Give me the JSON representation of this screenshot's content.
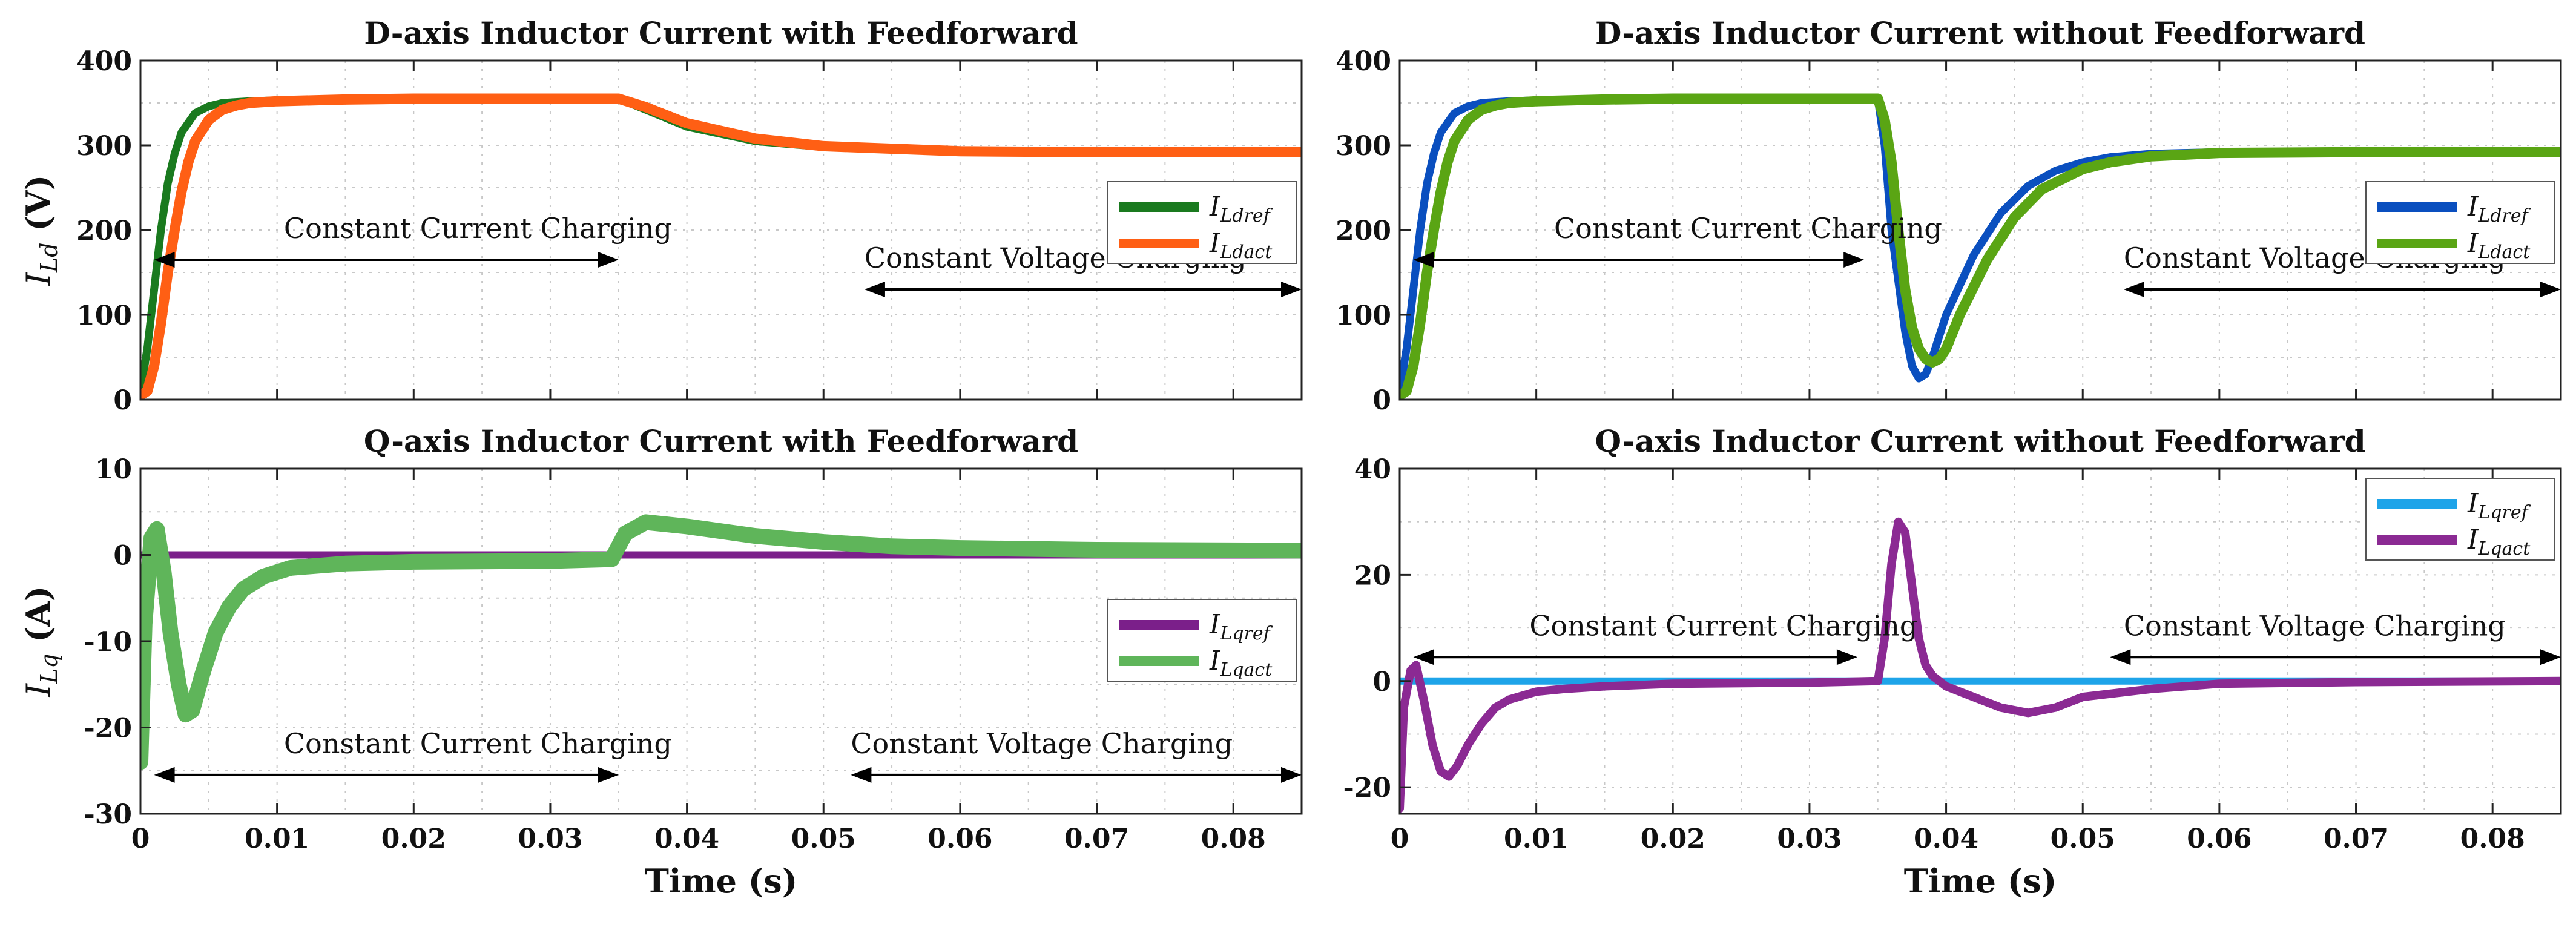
{
  "chart_data": [
    {
      "type": "line",
      "title": "D-axis Inductor Current with Feedforward",
      "ylabel_main": "I",
      "ylabel_sub": "Ld",
      "ylabel_unit": " (V)",
      "xlabel": "",
      "xlim": [
        0,
        0.085
      ],
      "ylim": [
        0,
        400
      ],
      "xticks": [
        0,
        0.01,
        0.02,
        0.03,
        0.04,
        0.05,
        0.06,
        0.07,
        0.08
      ],
      "xtick_labels": [
        "",
        "",
        "",
        "",
        "",
        "",
        "",
        "",
        ""
      ],
      "yticks": [
        0,
        100,
        200,
        300,
        400
      ],
      "ytick_labels": [
        "0",
        "100",
        "200",
        "300",
        "400"
      ],
      "legend_position": "right-middle",
      "annotations": [
        {
          "text": "Constant Current Charging",
          "x_from": 0.001,
          "x_to": 0.035,
          "y": 165
        },
        {
          "text": "Constant Voltage Charging",
          "x_from": 0.053,
          "x_to": 0.085,
          "y": 130
        }
      ],
      "series": [
        {
          "name": "I",
          "sub": "Ldref",
          "color": "#1a7a1f",
          "width": 13,
          "x": [
            0,
            0.0005,
            0.001,
            0.0015,
            0.002,
            0.0025,
            0.003,
            0.004,
            0.005,
            0.006,
            0.008,
            0.01,
            0.015,
            0.02,
            0.03,
            0.035,
            0.037,
            0.04,
            0.045,
            0.05,
            0.06,
            0.07,
            0.085
          ],
          "y": [
            10,
            60,
            130,
            200,
            255,
            290,
            315,
            338,
            346,
            350,
            352,
            353,
            354,
            355,
            355,
            355,
            342,
            322,
            305,
            298,
            293,
            292,
            292
          ]
        },
        {
          "name": "I",
          "sub": "Ldact",
          "color": "#ff5f14",
          "width": 17,
          "x": [
            0,
            0.0005,
            0.001,
            0.0015,
            0.002,
            0.0025,
            0.003,
            0.0035,
            0.004,
            0.005,
            0.006,
            0.007,
            0.008,
            0.01,
            0.015,
            0.02,
            0.03,
            0.035,
            0.037,
            0.04,
            0.045,
            0.05,
            0.06,
            0.07,
            0.085
          ],
          "y": [
            5,
            10,
            40,
            90,
            150,
            200,
            245,
            280,
            305,
            330,
            342,
            347,
            350,
            352,
            354,
            355,
            355,
            355,
            345,
            326,
            308,
            299,
            293,
            292,
            292
          ]
        }
      ]
    },
    {
      "type": "line",
      "title": "D-axis Inductor Current without Feedforward",
      "ylabel_main": "",
      "ylabel_sub": "",
      "ylabel_unit": "",
      "xlabel": "",
      "xlim": [
        0,
        0.085
      ],
      "ylim": [
        0,
        400
      ],
      "xticks": [
        0,
        0.01,
        0.02,
        0.03,
        0.04,
        0.05,
        0.06,
        0.07,
        0.08
      ],
      "xtick_labels": [
        "",
        "",
        "",
        "",
        "",
        "",
        "",
        "",
        ""
      ],
      "yticks": [
        0,
        100,
        200,
        300,
        400
      ],
      "ytick_labels": [
        "0",
        "100",
        "200",
        "300",
        "400"
      ],
      "legend_position": "right-middle",
      "annotations": [
        {
          "text": "Constant Current Charging",
          "x_from": 0.001,
          "x_to": 0.034,
          "y": 165
        },
        {
          "text": "Constant Voltage Charging",
          "x_from": 0.053,
          "x_to": 0.085,
          "y": 130
        }
      ],
      "series": [
        {
          "name": "I",
          "sub": "Ldref",
          "color": "#0a4fbf",
          "width": 13,
          "x": [
            0,
            0.0005,
            0.001,
            0.0015,
            0.002,
            0.0025,
            0.003,
            0.004,
            0.005,
            0.006,
            0.008,
            0.01,
            0.015,
            0.02,
            0.03,
            0.035,
            0.0355,
            0.036,
            0.037,
            0.0375,
            0.038,
            0.0385,
            0.039,
            0.04,
            0.042,
            0.044,
            0.046,
            0.048,
            0.05,
            0.052,
            0.055,
            0.06,
            0.07,
            0.085
          ],
          "y": [
            10,
            60,
            130,
            200,
            255,
            290,
            315,
            338,
            346,
            350,
            352,
            353,
            354,
            355,
            355,
            355,
            300,
            200,
            80,
            40,
            25,
            30,
            50,
            100,
            170,
            220,
            252,
            270,
            280,
            286,
            290,
            292,
            292,
            292
          ]
        },
        {
          "name": "I",
          "sub": "Ldact",
          "color": "#5aa514",
          "width": 17,
          "x": [
            0,
            0.0005,
            0.001,
            0.0015,
            0.002,
            0.0025,
            0.003,
            0.0035,
            0.004,
            0.005,
            0.006,
            0.007,
            0.008,
            0.01,
            0.015,
            0.02,
            0.03,
            0.035,
            0.0355,
            0.036,
            0.0365,
            0.037,
            0.0375,
            0.038,
            0.0385,
            0.039,
            0.0395,
            0.04,
            0.041,
            0.043,
            0.045,
            0.047,
            0.05,
            0.052,
            0.055,
            0.06,
            0.07,
            0.085
          ],
          "y": [
            5,
            10,
            40,
            90,
            150,
            200,
            245,
            280,
            305,
            330,
            342,
            347,
            350,
            352,
            354,
            355,
            355,
            355,
            330,
            280,
            200,
            130,
            85,
            60,
            48,
            44,
            48,
            60,
            100,
            165,
            215,
            248,
            272,
            280,
            287,
            291,
            292,
            292
          ]
        }
      ]
    },
    {
      "type": "line",
      "title": "Q-axis Inductor Current with Feedforward",
      "ylabel_main": "I",
      "ylabel_sub": "Lq",
      "ylabel_unit": " (A)",
      "xlabel": "Time (s)",
      "xlim": [
        0,
        0.085
      ],
      "ylim": [
        -30,
        10
      ],
      "xticks": [
        0,
        0.01,
        0.02,
        0.03,
        0.04,
        0.05,
        0.06,
        0.07,
        0.08
      ],
      "xtick_labels": [
        "0",
        "0.01",
        "0.02",
        "0.03",
        "0.04",
        "0.05",
        "0.06",
        "0.07",
        "0.08"
      ],
      "yticks": [
        -30,
        -20,
        -10,
        0,
        10
      ],
      "ytick_labels": [
        "-30",
        "-20",
        "-10",
        "0",
        "10"
      ],
      "legend_position": "right-middle",
      "annotations": [
        {
          "text": "Constant Current Charging",
          "x_from": 0.001,
          "x_to": 0.035,
          "y": -25.5
        },
        {
          "text": "Constant Voltage Charging",
          "x_from": 0.052,
          "x_to": 0.085,
          "y": -25.5
        }
      ],
      "series": [
        {
          "name": "I",
          "sub": "Lqref",
          "color": "#7b1f8a",
          "width": 12,
          "x": [
            0,
            0.085
          ],
          "y": [
            0,
            0
          ]
        },
        {
          "name": "I",
          "sub": "Lqact",
          "color": "#5fb55a",
          "width": 26,
          "x": [
            0,
            0.0003,
            0.0008,
            0.0012,
            0.0017,
            0.0022,
            0.0028,
            0.0033,
            0.0038,
            0.0045,
            0.0055,
            0.0065,
            0.0075,
            0.009,
            0.011,
            0.015,
            0.02,
            0.03,
            0.0345,
            0.0355,
            0.037,
            0.04,
            0.045,
            0.05,
            0.055,
            0.06,
            0.07,
            0.085
          ],
          "y": [
            -24,
            -8,
            2,
            3,
            -2,
            -9,
            -15,
            -18.5,
            -18,
            -14,
            -9,
            -6,
            -4,
            -2.5,
            -1.5,
            -1,
            -0.8,
            -0.7,
            -0.5,
            2.5,
            3.8,
            3.3,
            2.2,
            1.5,
            1,
            0.8,
            0.6,
            0.5
          ]
        }
      ]
    },
    {
      "type": "line",
      "title": "Q-axis Inductor Current without Feedforward",
      "ylabel_main": "",
      "ylabel_sub": "",
      "ylabel_unit": "",
      "xlabel": "Time (s)",
      "xlim": [
        0,
        0.085
      ],
      "ylim": [
        -25,
        40
      ],
      "xticks": [
        0,
        0.01,
        0.02,
        0.03,
        0.04,
        0.05,
        0.06,
        0.07,
        0.08
      ],
      "xtick_labels": [
        "0",
        "0.01",
        "0.02",
        "0.03",
        "0.04",
        "0.05",
        "0.06",
        "0.07",
        "0.08"
      ],
      "yticks": [
        -20,
        0,
        20,
        40
      ],
      "ytick_labels": [
        "-20",
        "0",
        "20",
        "40"
      ],
      "legend_position": "top-right",
      "annotations": [
        {
          "text": "Constant Current Charging",
          "x_from": 0.001,
          "x_to": 0.0335,
          "y": 4.5
        },
        {
          "text": "Constant Voltage Charging",
          "x_from": 0.052,
          "x_to": 0.085,
          "y": 4.5
        }
      ],
      "series": [
        {
          "name": "I",
          "sub": "Lqref",
          "color": "#1ea4e9",
          "width": 12,
          "x": [
            0,
            0.085
          ],
          "y": [
            0,
            0
          ]
        },
        {
          "name": "I",
          "sub": "Lqact",
          "color": "#8b2a93",
          "width": 14,
          "x": [
            0,
            0.0003,
            0.0008,
            0.0012,
            0.0018,
            0.0024,
            0.003,
            0.0036,
            0.0042,
            0.005,
            0.006,
            0.007,
            0.008,
            0.01,
            0.012,
            0.015,
            0.02,
            0.03,
            0.035,
            0.0355,
            0.036,
            0.0365,
            0.037,
            0.0375,
            0.038,
            0.0385,
            0.039,
            0.04,
            0.042,
            0.044,
            0.046,
            0.048,
            0.05,
            0.055,
            0.06,
            0.07,
            0.085
          ],
          "y": [
            -24,
            -5,
            2,
            3,
            -4,
            -12,
            -17,
            -18,
            -16,
            -12,
            -8,
            -5,
            -3.5,
            -2,
            -1.5,
            -1,
            -0.5,
            -0.3,
            0,
            8,
            22,
            30,
            28,
            18,
            8,
            3,
            1,
            -1,
            -3,
            -5,
            -6,
            -5,
            -3,
            -1.5,
            -0.5,
            -0.2,
            0
          ]
        }
      ]
    }
  ]
}
